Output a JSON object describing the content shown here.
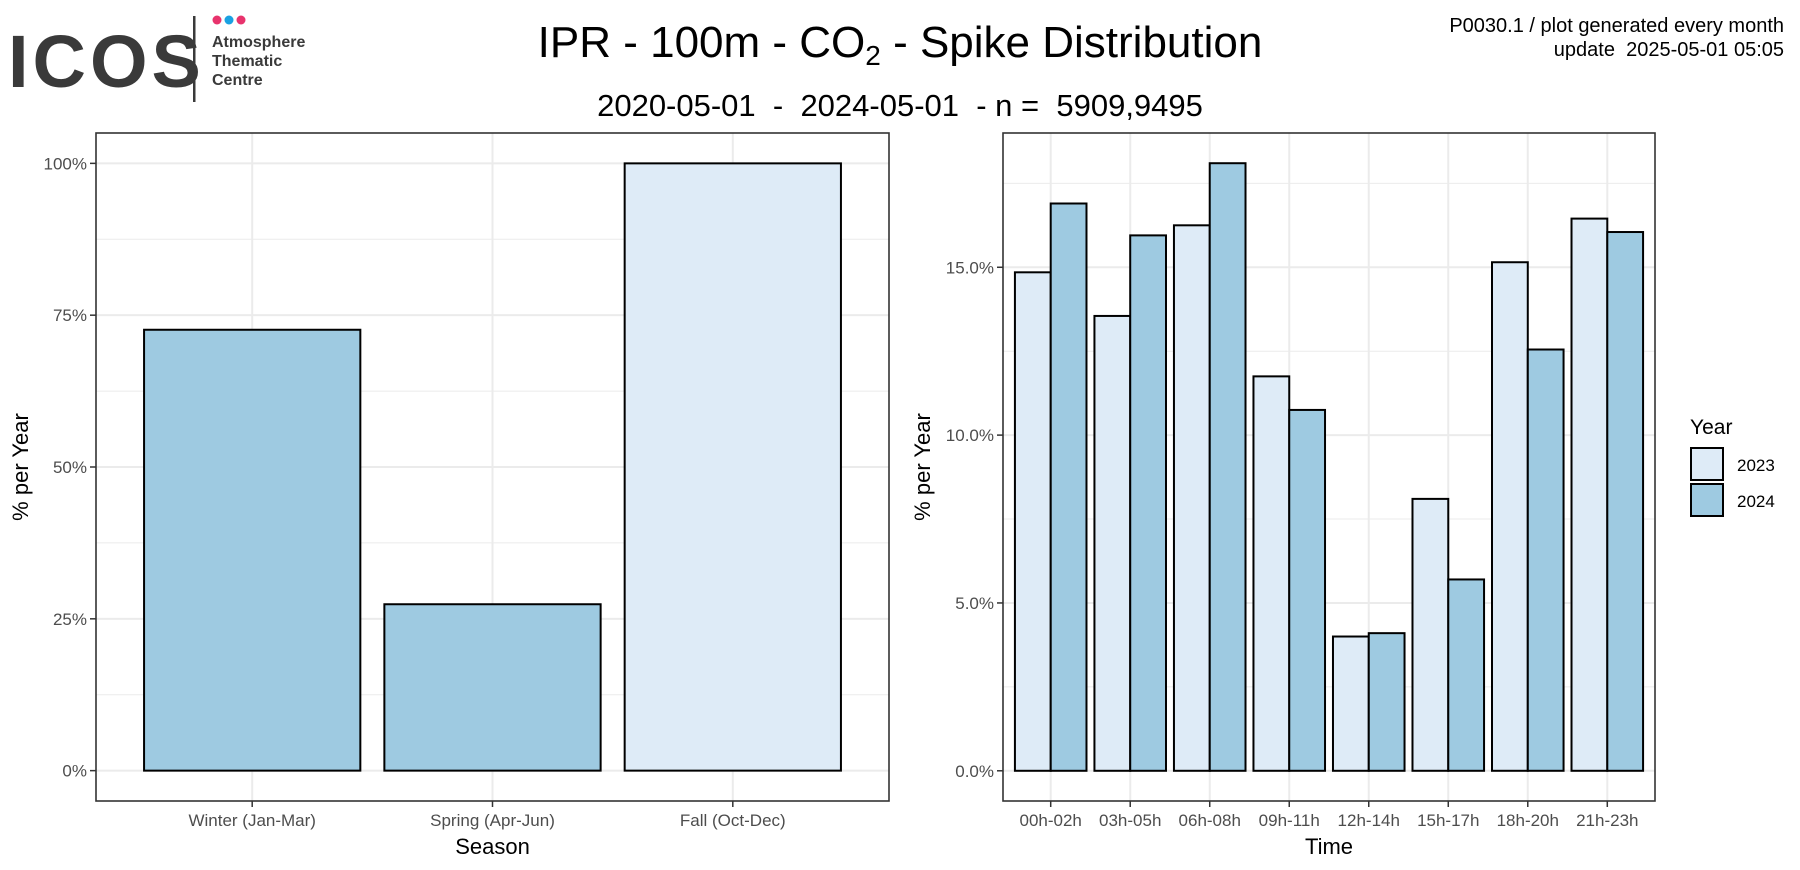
{
  "header": {
    "logo": {
      "wordmark": "ICOS",
      "line1": "Atmosphere",
      "line2": "Thematic",
      "line3": "Centre",
      "dot_colors": [
        "#e8336d",
        "#1aa1e2",
        "#e8336d"
      ],
      "wordmark_color": "#3a3a3a"
    },
    "title_main": "IPR - 100m - CO",
    "title_sub": "2",
    "title_rest": " - Spike Distribution",
    "subtitle": "2020-05-01  -  2024-05-01  - n =  5909,9495",
    "top_right_line1": "P0030.1 / plot generated every month",
    "top_right_line2": "update  2025-05-01 05:05"
  },
  "colors": {
    "y2023": "#deebf7",
    "y2024": "#9ecae1",
    "grid": "#ebebeb",
    "panel_border": "#333333"
  },
  "chart_data": [
    {
      "type": "bar",
      "categories": [
        "Winter (Jan-Mar)",
        "Spring (Apr-Jun)",
        "Fall (Oct-Dec)"
      ],
      "values": [
        72.6,
        27.4,
        100.0
      ],
      "value_year": [
        "2024",
        "2024",
        "2023"
      ],
      "xlabel": "Season",
      "ylabel": "% per Year",
      "ylim": [
        -5,
        105
      ],
      "yticks": [
        0,
        25,
        50,
        75,
        100
      ],
      "ytick_labels": [
        "0%",
        "25%",
        "50%",
        "75%",
        "100%"
      ],
      "grid": true
    },
    {
      "type": "bar",
      "categories": [
        "00h-02h",
        "03h-05h",
        "06h-08h",
        "09h-11h",
        "12h-14h",
        "15h-17h",
        "18h-20h",
        "21h-23h"
      ],
      "series": [
        {
          "name": "2023",
          "values": [
            14.85,
            13.55,
            16.25,
            11.75,
            4.0,
            8.1,
            15.15,
            16.45
          ]
        },
        {
          "name": "2024",
          "values": [
            16.9,
            15.95,
            18.1,
            10.75,
            4.1,
            5.7,
            12.55,
            16.05
          ]
        }
      ],
      "xlabel": "Time",
      "ylabel": "% per Year",
      "ylim": [
        -0.9,
        19.0
      ],
      "yticks": [
        0,
        5,
        10,
        15
      ],
      "ytick_labels": [
        "0.0%",
        "5.0%",
        "10.0%",
        "15.0%"
      ],
      "grid": true,
      "legend": {
        "title": "Year",
        "entries": [
          "2023",
          "2024"
        ],
        "placement": "right"
      }
    }
  ]
}
